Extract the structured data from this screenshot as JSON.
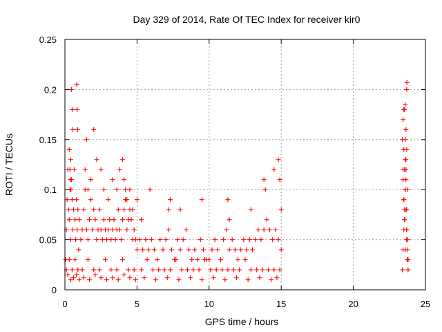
{
  "chart_data": {
    "type": "scatter",
    "title": "Day 329 of 2014, Rate Of TEC Index for receiver kir0",
    "xlabel": "GPS time / hours",
    "ylabel": "ROTI / TECUs",
    "xlim": [
      0,
      25
    ],
    "ylim": [
      0,
      0.25
    ],
    "xticks": [
      0,
      5,
      10,
      15,
      20,
      25
    ],
    "xtick_labels": [
      "0",
      "5",
      "10",
      "15",
      "20",
      "25"
    ],
    "yticks": [
      0,
      0.05,
      0.1,
      0.15,
      0.2,
      0.25
    ],
    "ytick_labels": [
      "0",
      "0.05",
      "0.1",
      "0.15",
      "0.2",
      "0.25"
    ],
    "grid": true,
    "marker": "+",
    "color": "#ff0000",
    "series": [
      {
        "name": "ROTI",
        "x": [
          0.05,
          0.1,
          0.15,
          0.2,
          0.25,
          0.3,
          0.35,
          0.4,
          0.45,
          0.5,
          0.55,
          0.6,
          0.65,
          0.7,
          0.75,
          0.8,
          0.85,
          0.9,
          0.95,
          1.0,
          1.1,
          1.2,
          1.3,
          1.4,
          1.5,
          1.6,
          1.7,
          1.8,
          1.9,
          2.0,
          2.1,
          2.2,
          2.3,
          2.4,
          2.5,
          2.6,
          2.7,
          2.8,
          2.9,
          3.0,
          3.1,
          3.2,
          3.3,
          3.4,
          3.5,
          3.6,
          3.7,
          3.8,
          3.9,
          4.0,
          4.1,
          4.2,
          4.3,
          4.4,
          4.5,
          4.6,
          4.7,
          4.8,
          4.9,
          5.0,
          5.2,
          5.4,
          5.6,
          5.8,
          6.0,
          6.2,
          6.4,
          6.6,
          6.8,
          7.0,
          7.2,
          7.4,
          7.6,
          7.8,
          8.0,
          8.2,
          8.4,
          8.6,
          8.8,
          9.0,
          9.2,
          9.4,
          9.6,
          9.8,
          10.0,
          10.2,
          10.4,
          10.6,
          10.8,
          11.0,
          11.2,
          11.4,
          11.6,
          11.8,
          12.0,
          12.2,
          12.4,
          12.6,
          12.8,
          13.0,
          13.2,
          13.4,
          13.6,
          13.8,
          14.0,
          14.2,
          14.4,
          14.6,
          14.8,
          15.0,
          0.1,
          0.3,
          0.5,
          0.7,
          0.9,
          1.2,
          1.6,
          2.0,
          2.4,
          2.8,
          3.2,
          3.6,
          4.0,
          4.4,
          4.8,
          5.3,
          5.7,
          6.1,
          6.5,
          6.9,
          7.3,
          7.7,
          8.1,
          8.5,
          8.9,
          9.3,
          9.7,
          10.1,
          10.5,
          10.9,
          11.3,
          11.7,
          12.1,
          12.5,
          12.9,
          13.3,
          13.7,
          14.1,
          14.5,
          14.9,
          0.2,
          0.4,
          0.6,
          0.8,
          1.0,
          1.3,
          1.7,
          2.1,
          2.5,
          2.9,
          3.3,
          3.7,
          4.1,
          4.5,
          4.9,
          5.5,
          6.3,
          7.1,
          7.9,
          8.7,
          9.5,
          10.3,
          11.1,
          11.9,
          12.7,
          13.5,
          14.3,
          14.7,
          0.45,
          0.5,
          0.55,
          0.82,
          0.85,
          0.88,
          0.3,
          0.35,
          0.38,
          0.4,
          0.42,
          1.4,
          1.5,
          1.6,
          1.8,
          2.0,
          2.2,
          2.5,
          2.7,
          3.0,
          3.3,
          3.6,
          3.8,
          4.0,
          4.1,
          4.2,
          4.3,
          4.5,
          4.7,
          5.0,
          5.3,
          5.9,
          7.2,
          7.3,
          8.0,
          9.5,
          11.3,
          11.4,
          12.9,
          13.8,
          13.9,
          14.5,
          14.8,
          14.9,
          15.0,
          23.4,
          23.45,
          23.5,
          23.55,
          23.6,
          23.65,
          23.7,
          23.75,
          23.8,
          23.4,
          23.45,
          23.5,
          23.55,
          23.6,
          23.65,
          23.7,
          23.75,
          23.8,
          23.45,
          23.5,
          23.55,
          23.6,
          23.65,
          23.7,
          23.75,
          23.5,
          23.55,
          23.6,
          23.65,
          23.7,
          23.75,
          23.45,
          23.5,
          23.6,
          23.7,
          23.75,
          23.8,
          23.55,
          23.65,
          23.7,
          23.75,
          23.7,
          23.72,
          23.6
        ],
        "y": [
          0.03,
          0.06,
          0.09,
          0.12,
          0.08,
          0.07,
          0.1,
          0.05,
          0.11,
          0.09,
          0.06,
          0.08,
          0.12,
          0.07,
          0.05,
          0.09,
          0.06,
          0.08,
          0.04,
          0.07,
          0.05,
          0.06,
          0.08,
          0.1,
          0.06,
          0.05,
          0.07,
          0.09,
          0.06,
          0.08,
          0.07,
          0.05,
          0.06,
          0.08,
          0.06,
          0.05,
          0.07,
          0.06,
          0.05,
          0.06,
          0.07,
          0.05,
          0.06,
          0.07,
          0.05,
          0.06,
          0.08,
          0.06,
          0.05,
          0.07,
          0.08,
          0.09,
          0.06,
          0.07,
          0.08,
          0.07,
          0.05,
          0.06,
          0.05,
          0.04,
          0.05,
          0.04,
          0.05,
          0.04,
          0.05,
          0.04,
          0.03,
          0.05,
          0.04,
          0.05,
          0.06,
          0.04,
          0.03,
          0.05,
          0.04,
          0.05,
          0.06,
          0.04,
          0.03,
          0.04,
          0.03,
          0.05,
          0.04,
          0.03,
          0.03,
          0.04,
          0.05,
          0.04,
          0.03,
          0.05,
          0.06,
          0.04,
          0.05,
          0.04,
          0.03,
          0.04,
          0.05,
          0.04,
          0.05,
          0.04,
          0.05,
          0.06,
          0.05,
          0.06,
          0.07,
          0.06,
          0.05,
          0.06,
          0.05,
          0.04,
          0.02,
          0.03,
          0.02,
          0.03,
          0.02,
          0.02,
          0.03,
          0.02,
          0.02,
          0.03,
          0.02,
          0.02,
          0.03,
          0.02,
          0.02,
          0.02,
          0.03,
          0.02,
          0.02,
          0.02,
          0.02,
          0.03,
          0.02,
          0.02,
          0.02,
          0.02,
          0.03,
          0.02,
          0.02,
          0.02,
          0.02,
          0.02,
          0.02,
          0.03,
          0.02,
          0.02,
          0.02,
          0.02,
          0.02,
          0.02,
          0.015,
          0.01,
          0.012,
          0.015,
          0.01,
          0.012,
          0.01,
          0.015,
          0.012,
          0.01,
          0.012,
          0.01,
          0.015,
          0.012,
          0.01,
          0.012,
          0.01,
          0.012,
          0.01,
          0.012,
          0.01,
          0.012,
          0.01,
          0.012,
          0.01,
          0.012,
          0.01,
          0.012,
          0.2,
          0.18,
          0.16,
          0.205,
          0.18,
          0.16,
          0.14,
          0.12,
          0.11,
          0.13,
          0.1,
          0.12,
          0.15,
          0.1,
          0.11,
          0.16,
          0.13,
          0.12,
          0.1,
          0.09,
          0.11,
          0.1,
          0.12,
          0.13,
          0.11,
          0.1,
          0.09,
          0.1,
          0.08,
          0.09,
          0.07,
          0.1,
          0.08,
          0.09,
          0.08,
          0.09,
          0.09,
          0.07,
          0.08,
          0.11,
          0.1,
          0.12,
          0.13,
          0.11,
          0.08,
          0.02,
          0.04,
          0.06,
          0.08,
          0.1,
          0.12,
          0.14,
          0.05,
          0.03,
          0.15,
          0.11,
          0.09,
          0.07,
          0.13,
          0.16,
          0.06,
          0.04,
          0.02,
          0.17,
          0.18,
          0.12,
          0.1,
          0.08,
          0.05,
          0.03,
          0.09,
          0.07,
          0.15,
          0.11,
          0.06,
          0.03,
          0.12,
          0.14,
          0.04,
          0.08,
          0.1,
          0.02,
          0.18,
          0.13,
          0.05,
          0.03,
          0.2,
          0.207,
          0.185
        ]
      }
    ]
  }
}
